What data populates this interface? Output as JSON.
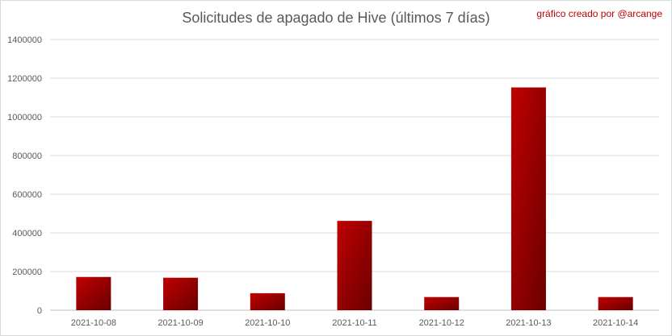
{
  "header": {
    "title": "Solicitudes de apagado de Hive (últimos 7 días)",
    "credit": "gráfico creado por @arcange"
  },
  "colors": {
    "bar_light": "#c00000",
    "bar_dark": "#6a0000",
    "grid": "#d9d9d9",
    "axis": "#bfbfbf",
    "text": "#595959",
    "credit": "#c00000"
  },
  "chart_data": {
    "type": "bar",
    "title": "Solicitudes de apagado de Hive (últimos 7 días)",
    "xlabel": "",
    "ylabel": "",
    "categories": [
      "2021-10-08",
      "2021-10-09",
      "2021-10-10",
      "2021-10-11",
      "2021-10-12",
      "2021-10-13",
      "2021-10-14"
    ],
    "values": [
      172000,
      168000,
      88000,
      462000,
      68000,
      1152000,
      68000
    ],
    "ylim": [
      0,
      1400000
    ],
    "yticks": [
      "0",
      "200000",
      "400000",
      "600000",
      "800000",
      "1000000",
      "1200000",
      "1400000"
    ],
    "grid": true,
    "legend": "none"
  }
}
